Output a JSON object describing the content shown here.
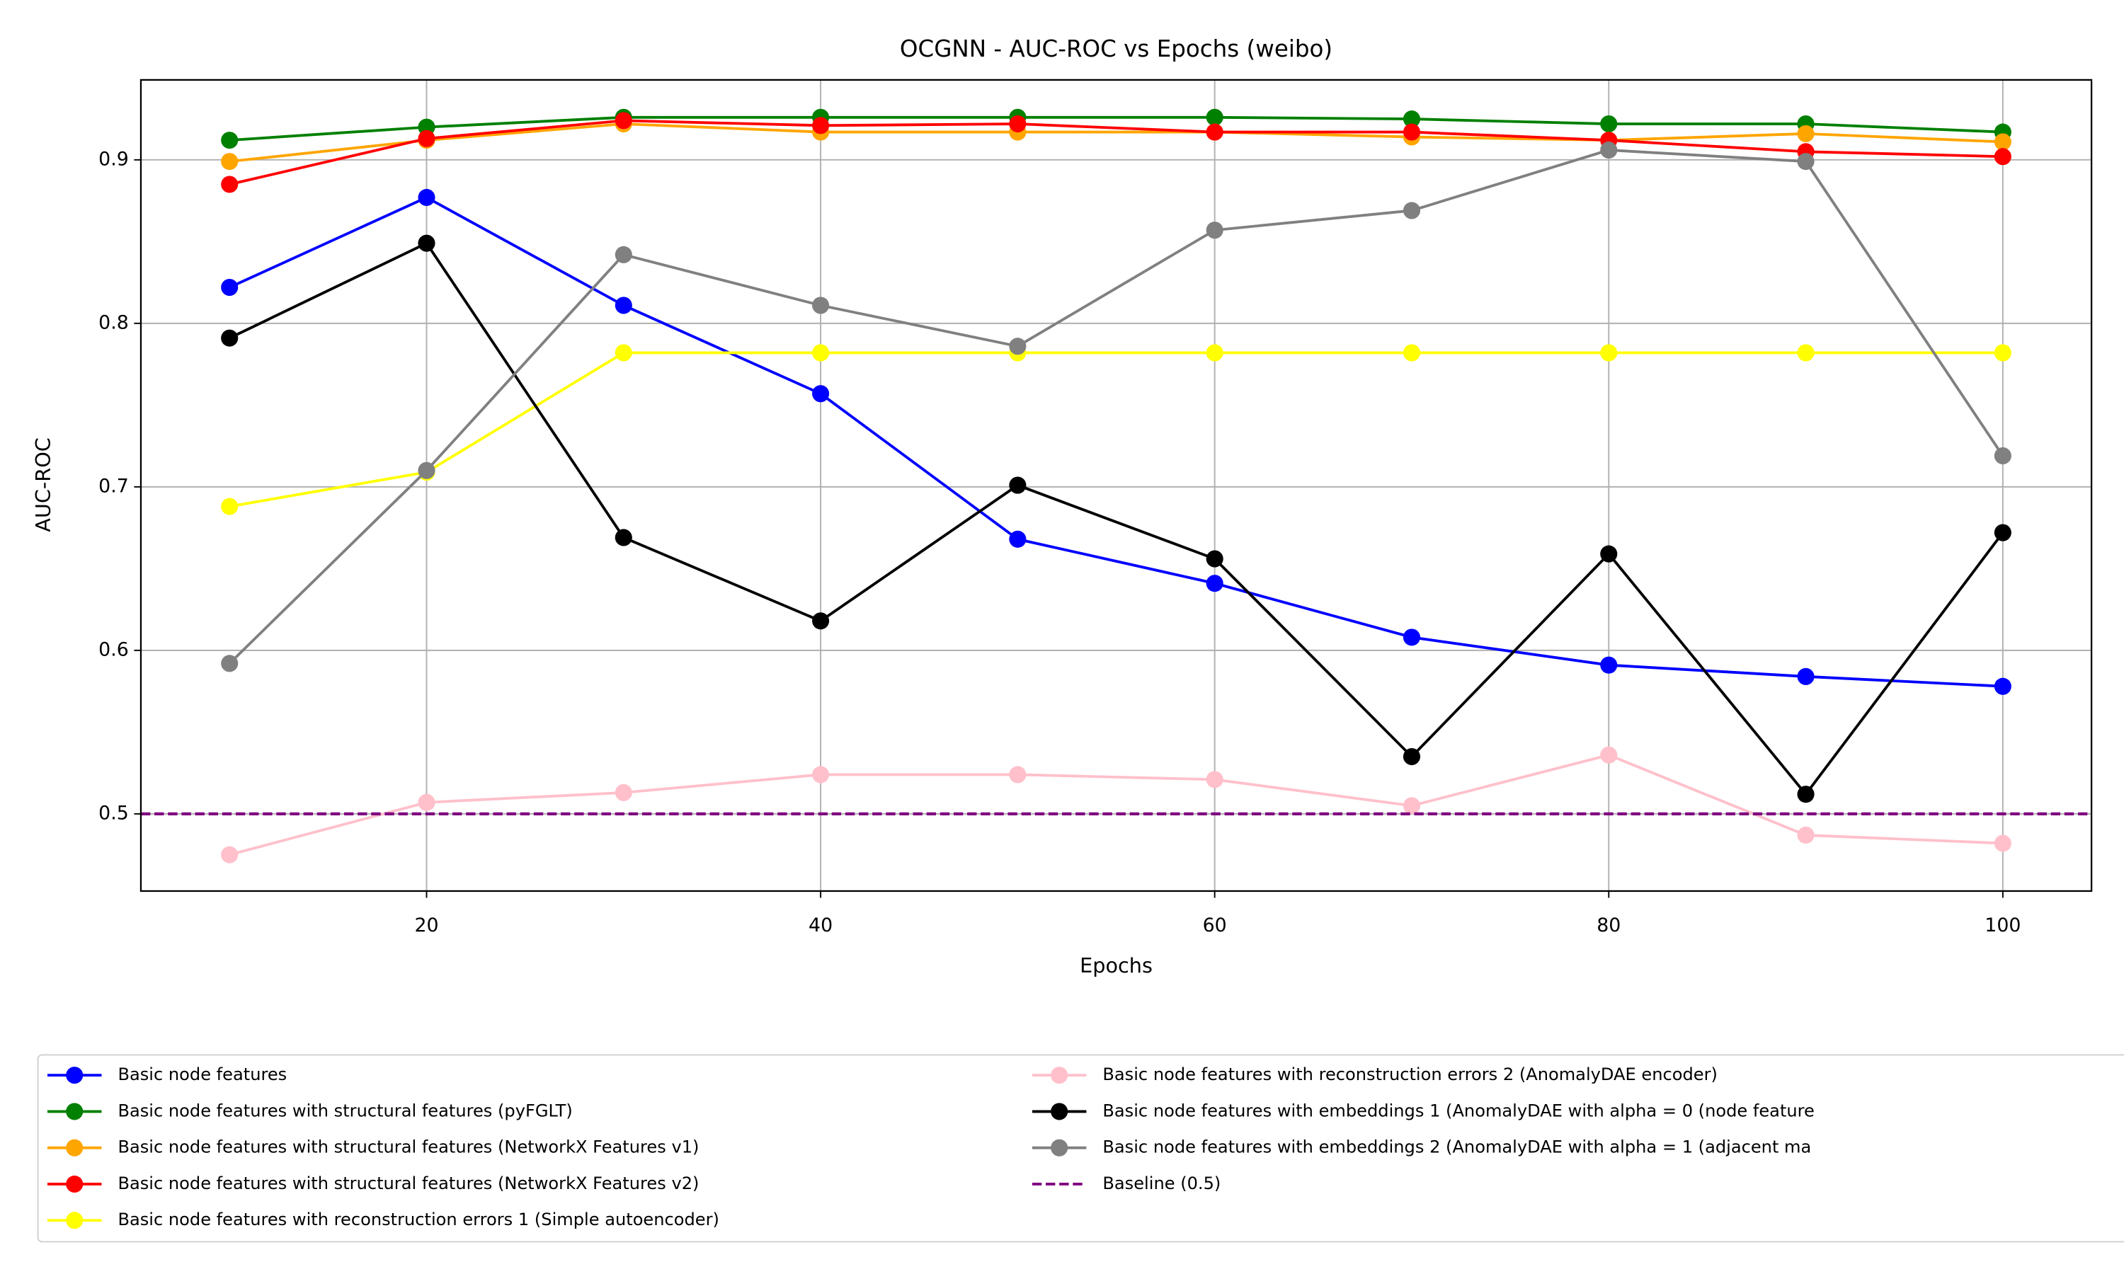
{
  "chart_data": {
    "type": "line",
    "title": "OCGNN - AUC-ROC vs Epochs (weibo)",
    "x_label": "Epochs",
    "y_label": "AUC-ROC",
    "x": [
      10,
      20,
      30,
      40,
      50,
      60,
      70,
      80,
      90,
      100
    ],
    "xlim": [
      5.5,
      104.5
    ],
    "xticks": [
      20,
      40,
      60,
      80,
      100
    ],
    "ylim": [
      0.4528,
      0.9489
    ],
    "yticks": [
      0.5,
      0.6,
      0.7,
      0.8,
      0.9
    ],
    "grid": true,
    "legend": "lower center",
    "series": [
      {
        "name": "Basic node features",
        "color": "#0000ff",
        "values": [
          0.822,
          0.877,
          0.811,
          0.757,
          0.668,
          0.641,
          0.608,
          0.591,
          0.584,
          0.578
        ]
      },
      {
        "name": "Basic node features with structural features (pyFGLT)",
        "color": "#008000",
        "values": [
          0.912,
          0.92,
          0.926,
          0.926,
          0.926,
          0.926,
          0.925,
          0.922,
          0.922,
          0.917
        ]
      },
      {
        "name": "Basic node features with structural features (NetworkX Features v1)",
        "color": "#ffa500",
        "values": [
          0.899,
          0.912,
          0.922,
          0.917,
          0.917,
          0.917,
          0.914,
          0.912,
          0.916,
          0.911
        ]
      },
      {
        "name": "Basic node features with structural features (NetworkX Features v2)",
        "color": "#ff0000",
        "values": [
          0.885,
          0.913,
          0.924,
          0.921,
          0.922,
          0.917,
          0.917,
          0.912,
          0.905,
          0.902
        ]
      },
      {
        "name": "Basic node features with reconstruction errors 1 (Simple autoencoder)",
        "color": "#ffff00",
        "values": [
          0.688,
          0.709,
          0.782,
          0.782,
          0.782,
          0.782,
          0.782,
          0.782,
          0.782,
          0.782
        ]
      },
      {
        "name": "Basic node features with reconstruction errors 2 (AnomalyDAE encoder)",
        "color": "#ffc0cb",
        "values": [
          0.475,
          0.507,
          0.513,
          0.524,
          0.524,
          0.521,
          0.505,
          0.536,
          0.487,
          0.482
        ]
      },
      {
        "name": "Basic node features with embeddings 1 (AnomalyDAE with alpha = 0 (node feature",
        "color": "#000000",
        "values": [
          0.791,
          0.849,
          0.669,
          0.618,
          0.701,
          0.656,
          0.535,
          0.659,
          0.512,
          0.672
        ]
      },
      {
        "name": "Basic node features with embeddings 2 (AnomalyDAE with alpha = 1 (adjacent ma",
        "color": "#808080",
        "values": [
          0.592,
          0.71,
          0.842,
          0.811,
          0.786,
          0.857,
          0.869,
          0.906,
          0.899,
          0.719
        ]
      }
    ],
    "baseline": {
      "name": "Baseline (0.5)",
      "value": 0.5,
      "color": "#800080"
    }
  }
}
